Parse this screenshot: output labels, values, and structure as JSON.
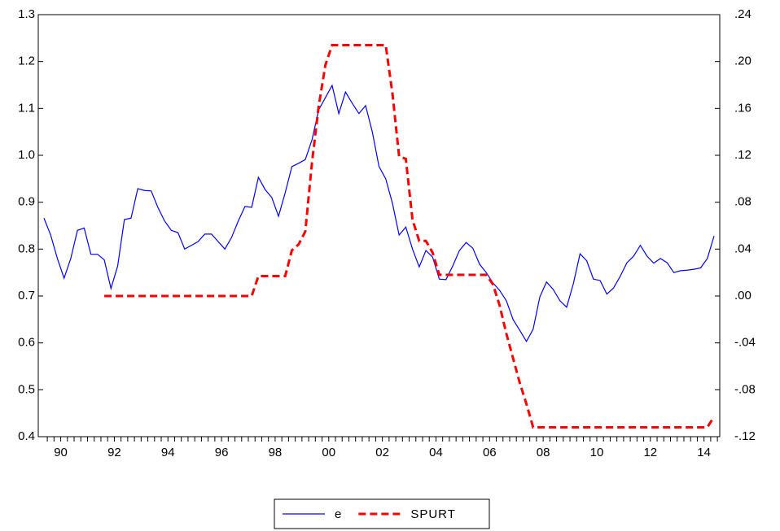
{
  "chart_data": {
    "type": "line",
    "categories": [
      null,
      null,
      "90",
      null,
      null,
      null,
      null,
      null,
      null,
      null,
      "92",
      null,
      null,
      null,
      null,
      null,
      null,
      null,
      "94",
      null,
      null,
      null,
      null,
      null,
      null,
      null,
      "96",
      null,
      null,
      null,
      null,
      null,
      null,
      null,
      "98",
      null,
      null,
      null,
      null,
      null,
      null,
      null,
      "00",
      null,
      null,
      null,
      null,
      null,
      null,
      null,
      "02",
      null,
      null,
      null,
      null,
      null,
      null,
      null,
      "04",
      null,
      null,
      null,
      null,
      null,
      null,
      null,
      "06",
      null,
      null,
      null,
      null,
      null,
      null,
      null,
      "08",
      null,
      null,
      null,
      null,
      null,
      null,
      null,
      "10",
      null,
      null,
      null,
      null,
      null,
      null,
      null,
      "12",
      null,
      null,
      null,
      null,
      null,
      null,
      null,
      "14",
      null,
      null
    ],
    "series": [
      {
        "name": "e",
        "color": "#0000ff",
        "dash": false,
        "values": [
          0.866,
          0.83,
          0.78,
          0.738,
          0.78,
          0.84,
          0.845,
          0.789,
          0.789,
          0.777,
          0.716,
          0.764,
          0.863,
          0.866,
          0.929,
          0.925,
          0.924,
          0.889,
          0.86,
          0.84,
          0.835,
          0.8,
          0.808,
          0.816,
          0.832,
          0.832,
          0.816,
          0.8,
          0.825,
          0.86,
          0.891,
          0.889,
          0.953,
          0.927,
          0.91,
          0.87,
          0.92,
          0.976,
          0.983,
          0.991,
          1.033,
          1.097,
          1.123,
          1.149,
          1.089,
          1.135,
          1.111,
          1.089,
          1.106,
          1.05,
          0.976,
          0.95,
          0.898,
          0.83,
          0.847,
          0.8,
          0.762,
          0.797,
          0.783,
          0.736,
          0.735,
          0.764,
          0.797,
          0.814,
          0.802,
          0.768,
          0.75,
          0.728,
          0.712,
          0.69,
          0.65,
          0.627,
          0.603,
          0.629,
          0.698,
          0.73,
          0.714,
          0.69,
          0.676,
          0.726,
          0.79,
          0.775,
          0.736,
          0.733,
          0.704,
          0.717,
          0.742,
          0.771,
          0.785,
          0.808,
          0.785,
          0.77,
          0.78,
          0.771,
          0.75,
          0.754,
          0.755,
          0.757,
          0.76,
          0.78,
          0.828
        ]
      },
      {
        "name": "SPURT",
        "color": "#ff0000",
        "dash": true,
        "axis": "y2",
        "values": [
          null,
          null,
          null,
          null,
          null,
          null,
          null,
          null,
          null,
          0,
          0,
          0,
          0,
          0,
          0,
          0,
          0,
          0,
          0,
          0,
          0,
          0,
          0,
          0,
          0,
          0,
          0,
          0,
          0,
          0,
          0,
          0,
          0.017,
          0.017,
          0.017,
          0.017,
          0.017,
          0.039,
          0.044,
          0.055,
          0.114,
          0.162,
          0.197,
          0.214,
          0.214,
          0.214,
          0.214,
          0.214,
          0.214,
          0.214,
          0.214,
          0.214,
          0.173,
          0.119,
          0.117,
          0.065,
          0.047,
          0.047,
          0.037,
          0.018,
          0.018,
          0.018,
          0.018,
          0.018,
          0.018,
          0.018,
          0.018,
          0.01,
          -0.008,
          -0.032,
          -0.053,
          -0.074,
          -0.092,
          -0.112,
          -0.112,
          -0.112,
          -0.112,
          -0.112,
          -0.112,
          -0.112,
          -0.112,
          -0.112,
          -0.112,
          -0.112,
          -0.112,
          -0.112,
          -0.112,
          -0.112,
          -0.112,
          -0.112,
          -0.112,
          -0.112,
          -0.112,
          -0.112,
          -0.112,
          -0.112,
          -0.112,
          -0.112,
          -0.112,
          -0.112,
          -0.103
        ]
      }
    ],
    "ylim": [
      0.4,
      1.3
    ],
    "yticks": [
      0.4,
      0.5,
      0.6,
      0.7,
      0.8,
      0.9,
      {
        "value": 1,
        "label": "1.0"
      },
      1.1,
      1.2,
      1.3
    ],
    "y2lim": [
      -0.12,
      0.24
    ],
    "y2ticks": [
      {
        "value": -0.12,
        "label": "-.12"
      },
      {
        "value": -0.08,
        "label": "-.08"
      },
      {
        "value": -0.04,
        "label": "-.04"
      },
      {
        "value": 0,
        "label": ".00"
      },
      {
        "value": 0.04,
        "label": ".04"
      },
      {
        "value": 0.08,
        "label": ".08"
      },
      {
        "value": 0.12,
        "label": ".12"
      },
      {
        "value": 0.16,
        "label": ".16"
      },
      {
        "value": 0.2,
        "label": ".20"
      },
      {
        "value": 0.24,
        "label": ".24"
      }
    ],
    "legend": "bottom"
  }
}
